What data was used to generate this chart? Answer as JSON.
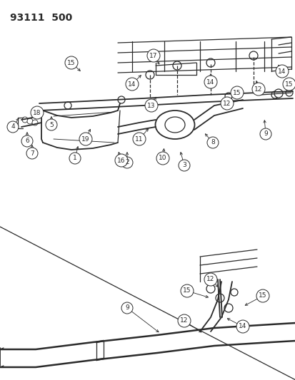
{
  "title": "93111  500",
  "bg_color": "#ffffff",
  "line_color": "#2a2a2a",
  "figsize": [
    4.14,
    5.33
  ],
  "dpi": 100,
  "border_color": "#555555"
}
